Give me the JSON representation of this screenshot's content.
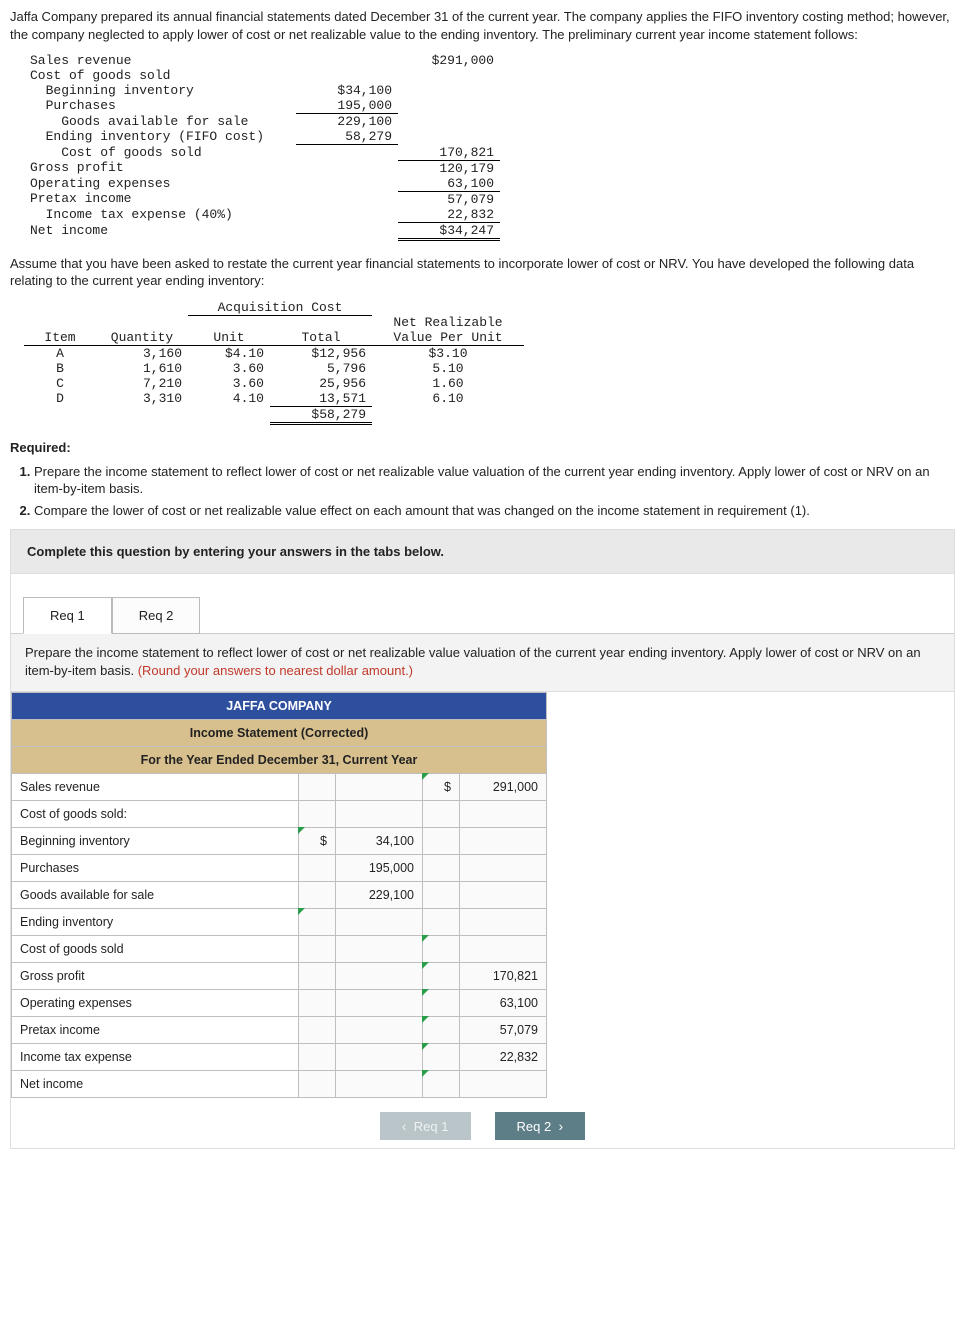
{
  "intro": "Jaffa Company prepared its annual financial statements dated December 31 of the current year. The company applies the FIFO inventory costing method; however, the company neglected to apply lower of cost or net realizable value to the ending inventory. The preliminary current year income statement follows:",
  "prelim": {
    "rows": [
      {
        "label": "Sales revenue",
        "col1": "",
        "col2": "$291,000"
      },
      {
        "label": "Cost of goods sold",
        "col1": "",
        "col2": ""
      },
      {
        "label": "  Beginning inventory",
        "col1": "$34,100",
        "col2": ""
      },
      {
        "label": "  Purchases",
        "col1": "195,000",
        "col2": "",
        "c1_under_bottom": true
      },
      {
        "label": "    Goods available for sale",
        "col1": "229,100",
        "col2": ""
      },
      {
        "label": "  Ending inventory (FIFO cost)",
        "col1": "58,279",
        "col2": "",
        "c1_under_bottom": true
      },
      {
        "label": "    Cost of goods sold",
        "col1": "",
        "col2": "170,821",
        "c2_under_bottom": true
      },
      {
        "label": "Gross profit",
        "col1": "",
        "col2": "120,179"
      },
      {
        "label": "Operating expenses",
        "col1": "",
        "col2": "63,100",
        "c2_under_bottom": true
      },
      {
        "label": "Pretax income",
        "col1": "",
        "col2": "57,079"
      },
      {
        "label": "  Income tax expense (40%)",
        "col1": "",
        "col2": "22,832",
        "c2_under_bottom": true
      },
      {
        "label": "Net income",
        "col1": "",
        "col2": "$34,247",
        "c2_dbl": true
      }
    ]
  },
  "mid_text": "Assume that you have been asked to restate the current year financial statements to incorporate lower of cost or NRV. You have developed the following data relating to the current year ending inventory:",
  "inv_table": {
    "group_header": "Acquisition Cost",
    "headers": {
      "item": "Item",
      "qty": "Quantity",
      "unit": "Unit",
      "total": "Total",
      "nrv": "Net Realizable\nValue Per Unit"
    },
    "rows": [
      {
        "item": "A",
        "qty": "3,160",
        "unit": "$4.10",
        "total": "$12,956",
        "nrv": "$3.10"
      },
      {
        "item": "B",
        "qty": "1,610",
        "unit": "3.60",
        "total": "5,796",
        "nrv": "5.10"
      },
      {
        "item": "C",
        "qty": "7,210",
        "unit": "3.60",
        "total": "25,956",
        "nrv": "1.60"
      },
      {
        "item": "D",
        "qty": "3,310",
        "unit": "4.10",
        "total": "13,571",
        "nrv": "6.10"
      }
    ],
    "total": "$58,279"
  },
  "required_label": "Required:",
  "required": [
    "Prepare the income statement to reflect lower of cost or net realizable value valuation of the current year ending inventory. Apply lower of cost or NRV on an item-by-item basis.",
    "Compare the lower of cost or net realizable value effect on each amount that was changed on the income statement in requirement (1)."
  ],
  "instr_bar": "Complete this question by entering your answers in the tabs below.",
  "tabs": {
    "req1": "Req 1",
    "req2": "Req 2"
  },
  "tab1_desc": "Prepare the income statement to reflect lower of cost or net realizable value valuation of the current year ending inventory. Apply lower of cost or NRV on an item-by-item basis. ",
  "tab1_hint": "(Round your answers to nearest dollar amount.)",
  "answer": {
    "company": "JAFFA COMPANY",
    "title": "Income Statement (Corrected)",
    "period": "For the Year Ended December 31, Current Year",
    "rows": [
      {
        "label": "Sales revenue",
        "indent": 0,
        "c1_sym": "",
        "c1": "",
        "c2_sym": "$",
        "c2": "291,000",
        "c2_marker": true
      },
      {
        "label": "Cost of goods sold:",
        "indent": 0,
        "c1_sym": "",
        "c1": "",
        "c2_sym": "",
        "c2": ""
      },
      {
        "label": "Beginning inventory",
        "indent": 1,
        "c1_sym": "$",
        "c1": "34,100",
        "c2_sym": "",
        "c2": "",
        "c1_marker": true
      },
      {
        "label": "Purchases",
        "indent": 1,
        "c1_sym": "",
        "c1": "195,000",
        "c2_sym": "",
        "c2": ""
      },
      {
        "label": "Goods available for sale",
        "indent": 2,
        "c1_sym": "",
        "c1": "229,100",
        "c2_sym": "",
        "c2": ""
      },
      {
        "label": "Ending inventory",
        "indent": 1,
        "c1_sym": "",
        "c1": "",
        "c2_sym": "",
        "c2": "",
        "c1_marker": true
      },
      {
        "label": "Cost of goods sold",
        "indent": 2,
        "c1_sym": "",
        "c1": "",
        "c2_sym": "",
        "c2": "",
        "c2_marker": true
      },
      {
        "label": "Gross profit",
        "indent": 0,
        "c1_sym": "",
        "c1": "",
        "c2_sym": "",
        "c2": "170,821",
        "c2_marker": true
      },
      {
        "label": "Operating expenses",
        "indent": 0,
        "c1_sym": "",
        "c1": "",
        "c2_sym": "",
        "c2": "63,100",
        "c2_marker": true
      },
      {
        "label": "Pretax income",
        "indent": 0,
        "c1_sym": "",
        "c1": "",
        "c2_sym": "",
        "c2": "57,079",
        "c2_marker": true
      },
      {
        "label": "Income tax expense",
        "indent": 1,
        "c1_sym": "",
        "c1": "",
        "c2_sym": "",
        "c2": "22,832",
        "c2_marker": true
      },
      {
        "label": "Net income",
        "indent": 0,
        "c1_sym": "",
        "c1": "",
        "c2_sym": "",
        "c2": "",
        "c2_marker": true
      }
    ]
  },
  "nav": {
    "prev": "Req 1",
    "next": "Req 2"
  },
  "colors": {
    "navy": "#2e4e9e",
    "tan": "#d8c08e",
    "hint": "#c0392b",
    "btn_disabled": "#b9c5c8",
    "btn_enabled": "#5d7d87"
  }
}
